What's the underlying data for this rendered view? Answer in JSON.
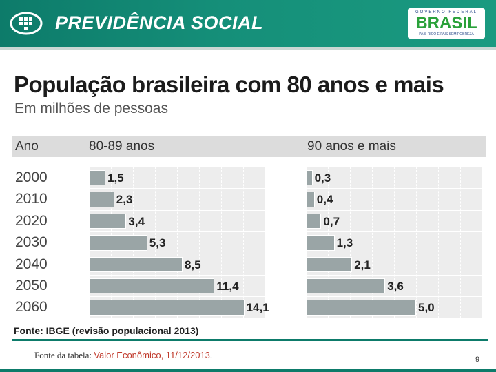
{
  "header": {
    "title": "PREVIDÊNCIA SOCIAL",
    "gov_top": "GOVERNO FEDERAL",
    "gov_brand": "BRASIL",
    "gov_motto": "PAÍS RICO É PAÍS SEM POBREZA",
    "colors": {
      "bar": "#0d7b6a",
      "brand_green": "#2aa13a",
      "brand_yellow": "#f2c21b"
    }
  },
  "chart_data": {
    "type": "bar",
    "orientation": "horizontal",
    "title": "População brasileira com 80 anos  e mais",
    "subtitle": "Em milhões de pessoas",
    "category_header": "Ano",
    "categories": [
      "2000",
      "2010",
      "2020",
      "2030",
      "2040",
      "2050",
      "2060"
    ],
    "series": [
      {
        "name": "80-89 anos",
        "values": [
          1.5,
          2.3,
          3.4,
          5.3,
          8.5,
          11.4,
          14.1
        ],
        "labels": [
          "1,5",
          "2,3",
          "3,4",
          "5,3",
          "8,5",
          "11,4",
          "14,1"
        ],
        "xlim": [
          0,
          16
        ]
      },
      {
        "name": "90 anos e mais",
        "values": [
          0.3,
          0.4,
          0.7,
          1.3,
          2.1,
          3.6,
          5.0
        ],
        "labels": [
          "0,3",
          "0,4",
          "0,7",
          "1,3",
          "2,1",
          "3,6",
          "5,0"
        ],
        "xlim": [
          0,
          8
        ]
      }
    ],
    "bar_color": "#9aa5a6",
    "source": "Fonte: IBGE (revisão populacional 2013)"
  },
  "footer": {
    "note_prefix": "Fonte da tabela: ",
    "note_source": "Valor Econômico, 11/12/2013",
    "note_suffix": ".",
    "page_number": "9"
  }
}
